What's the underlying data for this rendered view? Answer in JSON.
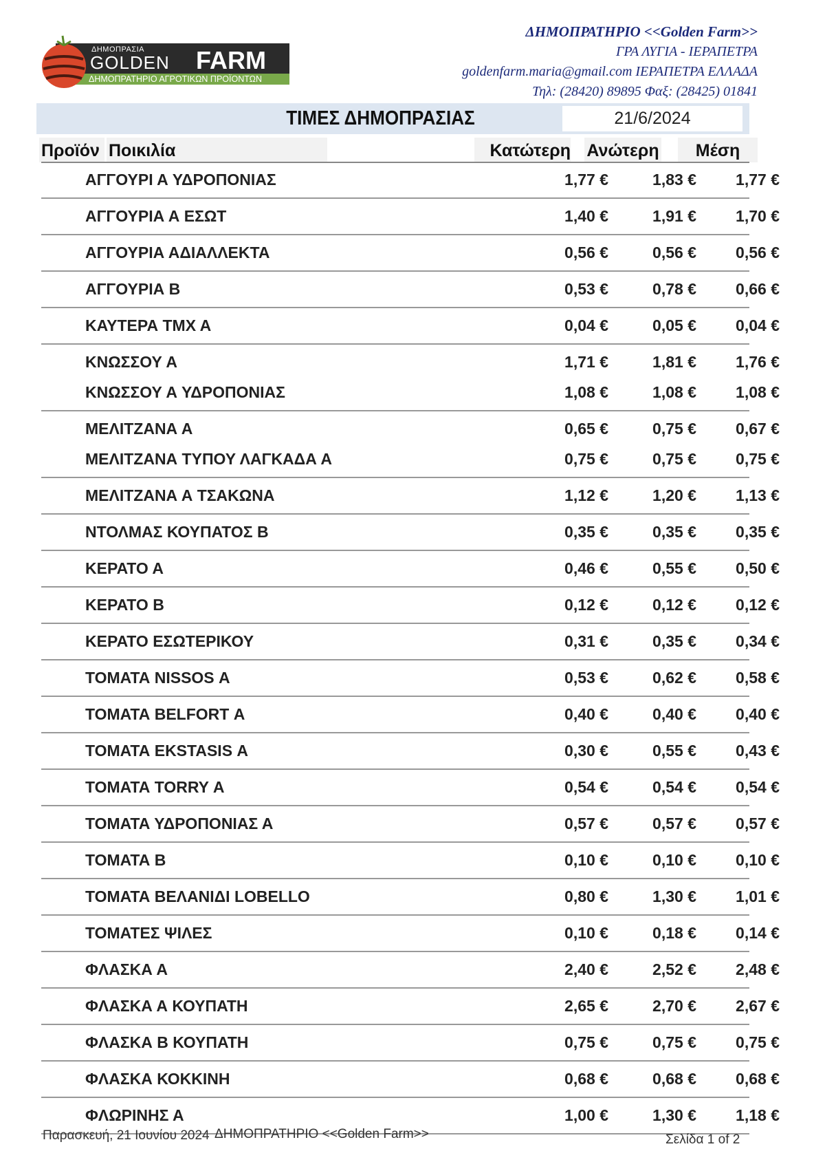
{
  "logo": {
    "small": "ΔΗΜΟΠΡΑΣΙΑ",
    "golden": "GOLDEN",
    "farm": "FARM",
    "tagline": "ΔΗΜΟΠΡΑΤΗΡΙΟ ΑΓΡΟΤΙΚΩΝ ΠΡΟΪΟΝΤΩΝ"
  },
  "header": {
    "company": "ΔΗΜΟΠΡΑΤΗΡΙΟ <<Golden Farm>>",
    "address": "ΓΡΑ ΛΥΓΙΑ - ΙΕΡΑΠΕΤΡΑ",
    "email_line": "goldenfarm.maria@gmail.com ΙΕΡΑΠΕΤΡΑ ΕΛΛΑΔΑ",
    "phone_line": "Τηλ: (28420)  89895  Φαξ: (28425) 01841"
  },
  "title": "ΤΙΜΕΣ ΔΗΜΟΠΡΑΣΙΑΣ",
  "date": "21/6/2024",
  "columns": {
    "product": "Προϊόν",
    "variety": "Ποικιλία",
    "low": "Κατώτερη",
    "high": "Ανώτερη",
    "avg": "Μέση"
  },
  "groups": [
    [
      {
        "name": "ΑΓΓΟΥΡΙ Α ΥΔΡΟΠΟΝΙΑΣ",
        "low": "1,77 €",
        "high": "1,83 €",
        "avg": "1,77 €"
      }
    ],
    [
      {
        "name": "ΑΓΓΟΥΡΙΑ Α ΕΣΩΤ",
        "low": "1,40 €",
        "high": "1,91 €",
        "avg": "1,70 €"
      }
    ],
    [
      {
        "name": "ΑΓΓΟΥΡΙΑ ΑΔΙΑΛΛΕΚΤΑ",
        "low": "0,56 €",
        "high": "0,56 €",
        "avg": "0,56 €"
      }
    ],
    [
      {
        "name": "ΑΓΓΟΥΡΙΑ Β",
        "low": "0,53 €",
        "high": "0,78 €",
        "avg": "0,66 €"
      }
    ],
    [
      {
        "name": "ΚΑΥΤΕΡΑ ΤΜΧ Α",
        "low": "0,04 €",
        "high": "0,05 €",
        "avg": "0,04 €"
      }
    ],
    [
      {
        "name": "ΚΝΩΣΣΟΥ Α",
        "low": "1,71 €",
        "high": "1,81 €",
        "avg": "1,76 €"
      },
      {
        "name": "ΚΝΩΣΣΟΥ Α ΥΔΡΟΠΟΝΙΑΣ",
        "low": "1,08 €",
        "high": "1,08 €",
        "avg": "1,08 €"
      }
    ],
    [
      {
        "name": "ΜΕΛΙΤΖΑΝΑ Α",
        "low": "0,65 €",
        "high": "0,75 €",
        "avg": "0,67 €"
      },
      {
        "name": "ΜΕΛΙΤΖΑΝΑ ΤΥΠΟΥ ΛΑΓΚΑΔΑ Α",
        "low": "0,75 €",
        "high": "0,75 €",
        "avg": "0,75 €"
      }
    ],
    [
      {
        "name": "ΜΕΛΙΤΖΑΝΑ Α ΤΣΑΚΩΝΑ",
        "low": "1,12 €",
        "high": "1,20 €",
        "avg": "1,13 €"
      }
    ],
    [
      {
        "name": "ΝΤΟΛΜΑΣ ΚΟΥΠΑΤΟΣ Β",
        "low": "0,35 €",
        "high": "0,35 €",
        "avg": "0,35 €"
      }
    ],
    [
      {
        "name": "ΚΕΡΑΤΟ Α",
        "low": "0,46 €",
        "high": "0,55 €",
        "avg": "0,50 €"
      }
    ],
    [
      {
        "name": "ΚΕΡΑΤΟ Β",
        "low": "0,12 €",
        "high": "0,12 €",
        "avg": "0,12 €"
      }
    ],
    [
      {
        "name": "ΚΕΡΑΤΟ ΕΣΩΤΕΡΙΚΟΥ",
        "low": "0,31 €",
        "high": "0,35 €",
        "avg": "0,34 €"
      }
    ],
    [
      {
        "name": "ΤΟΜΑΤΑ NISSOS Α",
        "low": "0,53 €",
        "high": "0,62 €",
        "avg": "0,58 €"
      }
    ],
    [
      {
        "name": "ΤΟΜΑΤΑ BELFORT Α",
        "low": "0,40 €",
        "high": "0,40 €",
        "avg": "0,40 €"
      }
    ],
    [
      {
        "name": "ΤΟΜΑΤΑ EKSTASIS Α",
        "low": "0,30 €",
        "high": "0,55 €",
        "avg": "0,43 €"
      }
    ],
    [
      {
        "name": "ΤΟΜΑΤΑ TORRY  Α",
        "low": "0,54 €",
        "high": "0,54 €",
        "avg": "0,54 €"
      }
    ],
    [
      {
        "name": "ΤΟΜΑΤΑ ΥΔΡΟΠΟΝΙΑΣ Α",
        "low": "0,57 €",
        "high": "0,57 €",
        "avg": "0,57 €"
      }
    ],
    [
      {
        "name": "ΤΟΜΑΤΑ Β",
        "low": "0,10 €",
        "high": "0,10 €",
        "avg": "0,10 €"
      }
    ],
    [
      {
        "name": "ΤΟΜΑΤΑ ΒΕΛΑΝΙΔΙ LOBELLO",
        "low": "0,80 €",
        "high": "1,30 €",
        "avg": "1,01 €"
      }
    ],
    [
      {
        "name": "ΤΟΜΑΤΕΣ ΨΙΛΕΣ",
        "low": "0,10 €",
        "high": "0,18 €",
        "avg": "0,14 €"
      }
    ],
    [
      {
        "name": "ΦΛΑΣΚΑ Α",
        "low": "2,40 €",
        "high": "2,52 €",
        "avg": "2,48 €"
      }
    ],
    [
      {
        "name": "ΦΛΑΣΚΑ Α ΚΟΥΠΑΤΗ",
        "low": "2,65 €",
        "high": "2,70 €",
        "avg": "2,67 €"
      }
    ],
    [
      {
        "name": "ΦΛΑΣΚΑ Β ΚΟΥΠΑΤΗ",
        "low": "0,75 €",
        "high": "0,75 €",
        "avg": "0,75 €"
      }
    ],
    [
      {
        "name": "ΦΛΑΣΚΑ ΚΟΚΚΙΝΗ",
        "low": "0,68 €",
        "high": "0,68 €",
        "avg": "0,68 €"
      }
    ],
    [
      {
        "name": "ΦΛΩΡΙΝΗΣ Α",
        "low": "1,00 €",
        "high": "1,30 €",
        "avg": "1,18 €"
      }
    ]
  ],
  "footer": {
    "date": "Παρασκευή, 21 Ιουνίου 2024",
    "company": "ΔΗΜΟΠΡΑΤΗΡΙΟ <<Golden Farm>>",
    "page": "Σελίδα 1 of 2"
  },
  "colors": {
    "header_text": "#1c2a7a",
    "title_bar": "#dde6f1",
    "logo_green": "#79a94a",
    "logo_dark": "#2b2b2b"
  }
}
